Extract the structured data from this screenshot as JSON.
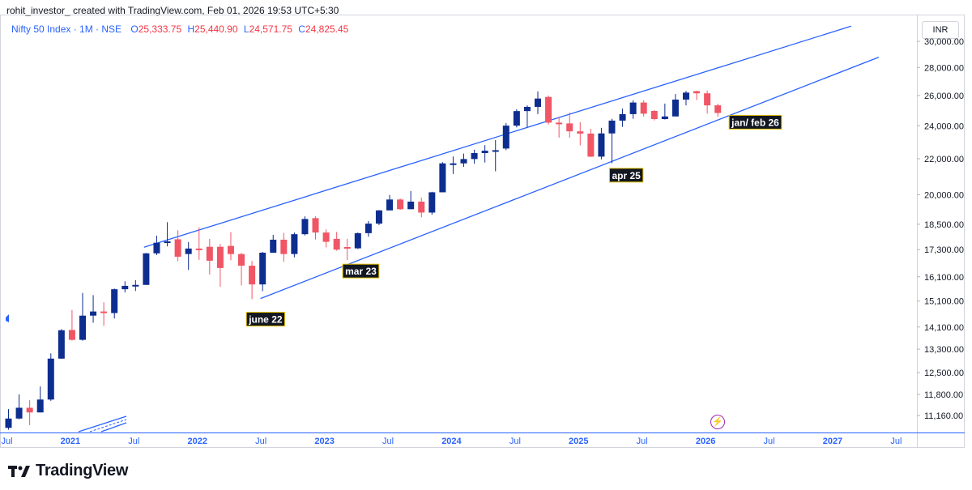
{
  "header": {
    "attribution": "rohit_investor_ created with TradingView.com, Feb 01, 2026 19:53 UTC+5:30",
    "symbol": "Nifty 50 Index · 1M · NSE",
    "ohlc": [
      {
        "label": "O",
        "value": "25,333.75"
      },
      {
        "label": "H",
        "value": "25,440.90"
      },
      {
        "label": "L",
        "value": "24,571.75"
      },
      {
        "label": "C",
        "value": "24,825.45"
      }
    ]
  },
  "currency_button": "INR",
  "branding": {
    "logo_text": "TradingView"
  },
  "colors": {
    "up": "#0d2d8f",
    "down": "#f05665",
    "line": "#2962ff",
    "axis_text": "#2962ff"
  },
  "chart_data": {
    "type": "candlestick",
    "title": "Nifty 50 Index · 1M · NSE",
    "scale": "log",
    "ylim": [
      10900,
      32200
    ],
    "y_ticks": [
      {
        "value": 30000,
        "label": "30,000.00"
      },
      {
        "value": 28000,
        "label": "28,000.00"
      },
      {
        "value": 26000,
        "label": "26,000.00"
      },
      {
        "value": 24000,
        "label": "24,000.00"
      },
      {
        "value": 22000,
        "label": "22,000.00"
      },
      {
        "value": 20000,
        "label": "20,000.00"
      },
      {
        "value": 18500,
        "label": "18,500.00"
      },
      {
        "value": 17300,
        "label": "17,300.00"
      },
      {
        "value": 16100,
        "label": "16,100.00"
      },
      {
        "value": 15100,
        "label": "15,100.00"
      },
      {
        "value": 14100,
        "label": "14,100.00"
      },
      {
        "value": 13300,
        "label": "13,300.00"
      },
      {
        "value": 12500,
        "label": "12,500.00"
      },
      {
        "value": 11800,
        "label": "11,800.00"
      },
      {
        "value": 11160,
        "label": "11,160.00"
      }
    ],
    "x_ticks": [
      {
        "m": 0,
        "label": "Jul",
        "year": false
      },
      {
        "m": 6,
        "label": "2021",
        "year": true
      },
      {
        "m": 12,
        "label": "Jul",
        "year": false
      },
      {
        "m": 18,
        "label": "2022",
        "year": true
      },
      {
        "m": 24,
        "label": "Jul",
        "year": false
      },
      {
        "m": 30,
        "label": "2023",
        "year": true
      },
      {
        "m": 36,
        "label": "Jul",
        "year": false
      },
      {
        "m": 42,
        "label": "2024",
        "year": true
      },
      {
        "m": 48,
        "label": "Jul",
        "year": false
      },
      {
        "m": 54,
        "label": "2025",
        "year": true
      },
      {
        "m": 60,
        "label": "Jul",
        "year": false
      },
      {
        "m": 66,
        "label": "2026",
        "year": true
      },
      {
        "m": 72,
        "label": "Jul",
        "year": false
      },
      {
        "m": 78,
        "label": "2027",
        "year": true
      },
      {
        "m": 84,
        "label": "Jul",
        "year": false
      }
    ],
    "series": [
      {
        "date": "2020-07",
        "o": 10800,
        "h": 11350,
        "l": 10750,
        "c": 11070
      },
      {
        "date": "2020-08",
        "o": 11070,
        "h": 11800,
        "l": 11050,
        "c": 11390
      },
      {
        "date": "2020-09",
        "o": 11390,
        "h": 11620,
        "l": 10880,
        "c": 11250
      },
      {
        "date": "2020-10",
        "o": 11250,
        "h": 12050,
        "l": 11400,
        "c": 11640
      },
      {
        "date": "2020-11",
        "o": 11640,
        "h": 13150,
        "l": 11600,
        "c": 12970
      },
      {
        "date": "2020-12",
        "o": 12970,
        "h": 14020,
        "l": 12960,
        "c": 13980
      },
      {
        "date": "2021-01",
        "o": 13990,
        "h": 14750,
        "l": 13600,
        "c": 13630
      },
      {
        "date": "2021-02",
        "o": 13630,
        "h": 15430,
        "l": 13600,
        "c": 14530
      },
      {
        "date": "2021-03",
        "o": 14530,
        "h": 15340,
        "l": 14260,
        "c": 14690
      },
      {
        "date": "2021-04",
        "o": 14690,
        "h": 15050,
        "l": 14150,
        "c": 14630
      },
      {
        "date": "2021-05",
        "o": 14630,
        "h": 15610,
        "l": 14420,
        "c": 15580
      },
      {
        "date": "2021-06",
        "o": 15580,
        "h": 15910,
        "l": 15450,
        "c": 15720
      },
      {
        "date": "2021-07",
        "o": 15720,
        "h": 15960,
        "l": 15510,
        "c": 15760
      },
      {
        "date": "2021-08",
        "o": 15760,
        "h": 17150,
        "l": 15830,
        "c": 17130
      },
      {
        "date": "2021-09",
        "o": 17130,
        "h": 17950,
        "l": 17050,
        "c": 17620
      },
      {
        "date": "2021-10",
        "o": 17620,
        "h": 18600,
        "l": 17450,
        "c": 17680
      },
      {
        "date": "2021-11",
        "o": 17780,
        "h": 18210,
        "l": 16780,
        "c": 16980
      },
      {
        "date": "2021-12",
        "o": 17100,
        "h": 17650,
        "l": 16400,
        "c": 17350
      },
      {
        "date": "2022-01",
        "o": 17350,
        "h": 18350,
        "l": 16840,
        "c": 17340
      },
      {
        "date": "2022-02",
        "o": 17430,
        "h": 17800,
        "l": 16200,
        "c": 16800
      },
      {
        "date": "2022-03",
        "o": 17430,
        "h": 17560,
        "l": 15680,
        "c": 16480
      },
      {
        "date": "2022-04",
        "o": 17470,
        "h": 18120,
        "l": 16820,
        "c": 17100
      },
      {
        "date": "2022-05",
        "o": 17100,
        "h": 17150,
        "l": 15740,
        "c": 16580
      },
      {
        "date": "2022-06",
        "o": 16580,
        "h": 16790,
        "l": 15180,
        "c": 15780
      },
      {
        "date": "2022-07",
        "o": 15780,
        "h": 17200,
        "l": 15500,
        "c": 17160
      },
      {
        "date": "2022-08",
        "o": 17160,
        "h": 17990,
        "l": 17150,
        "c": 17760
      },
      {
        "date": "2022-09",
        "o": 17760,
        "h": 18080,
        "l": 16750,
        "c": 17100
      },
      {
        "date": "2022-10",
        "o": 17100,
        "h": 18100,
        "l": 16950,
        "c": 18020
      },
      {
        "date": "2022-11",
        "o": 18020,
        "h": 18890,
        "l": 17960,
        "c": 18760
      },
      {
        "date": "2022-12",
        "o": 18800,
        "h": 18890,
        "l": 17770,
        "c": 18100
      },
      {
        "date": "2023-01",
        "o": 18100,
        "h": 18250,
        "l": 17400,
        "c": 17660
      },
      {
        "date": "2023-02",
        "o": 17800,
        "h": 18130,
        "l": 17250,
        "c": 17300
      },
      {
        "date": "2023-03",
        "o": 17420,
        "h": 17800,
        "l": 16830,
        "c": 17360
      },
      {
        "date": "2023-04",
        "o": 17360,
        "h": 18100,
        "l": 17330,
        "c": 18070
      },
      {
        "date": "2023-05",
        "o": 18070,
        "h": 18660,
        "l": 17900,
        "c": 18530
      },
      {
        "date": "2023-06",
        "o": 18530,
        "h": 19210,
        "l": 18460,
        "c": 19190
      },
      {
        "date": "2023-07",
        "o": 19190,
        "h": 19990,
        "l": 19200,
        "c": 19750
      },
      {
        "date": "2023-08",
        "o": 19750,
        "h": 19800,
        "l": 19220,
        "c": 19250
      },
      {
        "date": "2023-09",
        "o": 19250,
        "h": 20200,
        "l": 19250,
        "c": 19640
      },
      {
        "date": "2023-10",
        "o": 19640,
        "h": 19850,
        "l": 18840,
        "c": 19080
      },
      {
        "date": "2023-11",
        "o": 19080,
        "h": 20160,
        "l": 18970,
        "c": 20130
      },
      {
        "date": "2023-12",
        "o": 20130,
        "h": 21800,
        "l": 20170,
        "c": 21730
      },
      {
        "date": "2024-01",
        "o": 21730,
        "h": 22130,
        "l": 21130,
        "c": 21730
      },
      {
        "date": "2024-02",
        "o": 21730,
        "h": 22300,
        "l": 21530,
        "c": 21980
      },
      {
        "date": "2024-03",
        "o": 21980,
        "h": 22530,
        "l": 21710,
        "c": 22330
      },
      {
        "date": "2024-04",
        "o": 22330,
        "h": 22800,
        "l": 21780,
        "c": 22470
      },
      {
        "date": "2024-05",
        "o": 22470,
        "h": 23110,
        "l": 21280,
        "c": 22500
      },
      {
        "date": "2024-06",
        "o": 22600,
        "h": 24170,
        "l": 22500,
        "c": 24010
      },
      {
        "date": "2024-07",
        "o": 24010,
        "h": 25070,
        "l": 23900,
        "c": 24950
      },
      {
        "date": "2024-08",
        "o": 24950,
        "h": 25330,
        "l": 23900,
        "c": 25230
      },
      {
        "date": "2024-09",
        "o": 25230,
        "h": 26280,
        "l": 24750,
        "c": 25790
      },
      {
        "date": "2024-10",
        "o": 25900,
        "h": 26000,
        "l": 24080,
        "c": 24200
      },
      {
        "date": "2024-11",
        "o": 24200,
        "h": 24540,
        "l": 23260,
        "c": 24130
      },
      {
        "date": "2024-12",
        "o": 24150,
        "h": 24860,
        "l": 23260,
        "c": 23650
      },
      {
        "date": "2025-01",
        "o": 23650,
        "h": 24230,
        "l": 22790,
        "c": 23510
      },
      {
        "date": "2025-02",
        "o": 23510,
        "h": 23810,
        "l": 22100,
        "c": 22120
      },
      {
        "date": "2025-03",
        "o": 22120,
        "h": 23870,
        "l": 21960,
        "c": 23520
      },
      {
        "date": "2025-04",
        "o": 23520,
        "h": 24450,
        "l": 21740,
        "c": 24330
      },
      {
        "date": "2025-05",
        "o": 24330,
        "h": 25120,
        "l": 23930,
        "c": 24750
      },
      {
        "date": "2025-06",
        "o": 24750,
        "h": 25670,
        "l": 24450,
        "c": 25520
      },
      {
        "date": "2025-07",
        "o": 25520,
        "h": 25670,
        "l": 24590,
        "c": 24780
      },
      {
        "date": "2025-08",
        "o": 24960,
        "h": 25010,
        "l": 24340,
        "c": 24430
      },
      {
        "date": "2025-09",
        "o": 24430,
        "h": 25450,
        "l": 24400,
        "c": 24600
      },
      {
        "date": "2025-10",
        "o": 24600,
        "h": 26100,
        "l": 24600,
        "c": 25720
      },
      {
        "date": "2025-11",
        "o": 25720,
        "h": 26320,
        "l": 25330,
        "c": 26200
      },
      {
        "date": "2025-12",
        "o": 26300,
        "h": 26330,
        "l": 25690,
        "c": 26150
      },
      {
        "date": "2026-01",
        "o": 26150,
        "h": 26340,
        "l": 24780,
        "c": 25330
      },
      {
        "date": "2026-02",
        "o": 25333.75,
        "h": 25440.9,
        "l": 24571.75,
        "c": 24825.45
      }
    ],
    "trendlines": [
      {
        "name": "upper-channel",
        "from": {
          "m": 12.8,
          "v": 17410
        },
        "to": {
          "m": 79.6,
          "v": 31230
        }
      },
      {
        "name": "lower-channel",
        "from": {
          "m": 23.8,
          "v": 15200
        },
        "to": {
          "m": 82.2,
          "v": 28770
        }
      }
    ],
    "annotations": [
      {
        "text": "june 22",
        "m": 22.7,
        "v": 14380
      },
      {
        "text": "mar 23",
        "m": 31.8,
        "v": 16330
      },
      {
        "text": "apr 25",
        "m": 57.0,
        "v": 21040
      },
      {
        "text": "jan/ feb 26",
        "m": 68.3,
        "v": 24200
      }
    ]
  }
}
